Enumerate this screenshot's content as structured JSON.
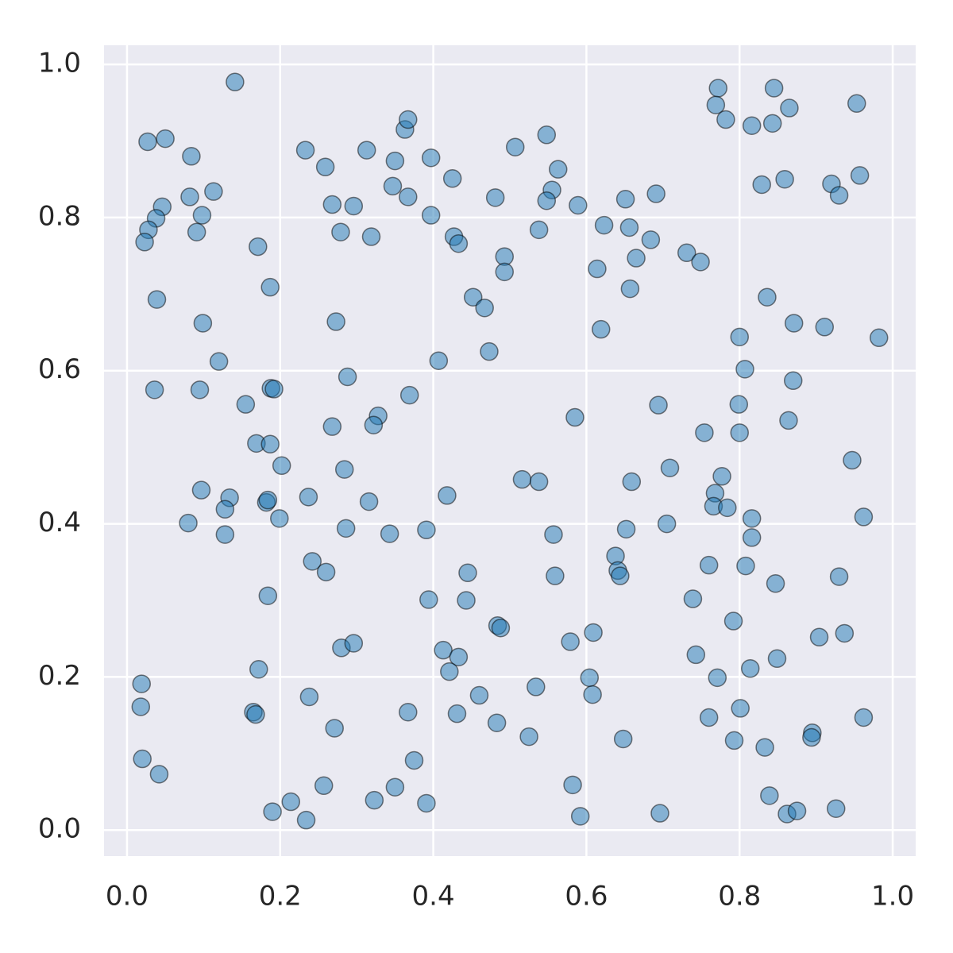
{
  "chart_data": {
    "type": "scatter",
    "color": "#1f77b4",
    "grid": true,
    "xlim": [
      -0.03,
      1.03
    ],
    "ylim": [
      -0.034,
      1.025
    ],
    "xticks": [
      {
        "value": 0,
        "label": "0.0"
      },
      0.2,
      0.4,
      0.6,
      0.8,
      {
        "value": 1,
        "label": "1.0"
      }
    ],
    "yticks": [
      {
        "value": 0,
        "label": "0.0"
      },
      0.2,
      0.4,
      0.6,
      0.8,
      {
        "value": 1,
        "label": "1.0"
      }
    ],
    "x": [
      0.141,
      0.027,
      0.05,
      0.084,
      0.082,
      0.113,
      0.046,
      0.038,
      0.028,
      0.023,
      0.098,
      0.091,
      0.039,
      0.099,
      0.12,
      0.036,
      0.095,
      0.171,
      0.187,
      0.233,
      0.259,
      0.268,
      0.296,
      0.279,
      0.273,
      0.288,
      0.313,
      0.319,
      0.35,
      0.363,
      0.367,
      0.347,
      0.367,
      0.397,
      0.397,
      0.425,
      0.427,
      0.433,
      0.452,
      0.467,
      0.493,
      0.493,
      0.481,
      0.507,
      0.548,
      0.563,
      0.555,
      0.548,
      0.589,
      0.538,
      0.473,
      0.407,
      0.369,
      0.155,
      0.188,
      0.192,
      0.169,
      0.187,
      0.202,
      0.268,
      0.328,
      0.322,
      0.284,
      0.097,
      0.134,
      0.128,
      0.08,
      0.128,
      0.182,
      0.184,
      0.199,
      0.237,
      0.286,
      0.316,
      0.343,
      0.391,
      0.418,
      0.242,
      0.26,
      0.184,
      0.172,
      0.165,
      0.168,
      0.238,
      0.271,
      0.28,
      0.296,
      0.394,
      0.445,
      0.443,
      0.413,
      0.433,
      0.421,
      0.431,
      0.367,
      0.46,
      0.483,
      0.484,
      0.488,
      0.516,
      0.538,
      0.557,
      0.559,
      0.585,
      0.019,
      0.018,
      0.02,
      0.042,
      0.19,
      0.214,
      0.234,
      0.257,
      0.323,
      0.35,
      0.375,
      0.391,
      0.525,
      0.534,
      0.579,
      0.609,
      0.604,
      0.608,
      0.582,
      0.592,
      0.648,
      0.696,
      0.614,
      0.623,
      0.651,
      0.656,
      0.665,
      0.657,
      0.684,
      0.691,
      0.619,
      0.731,
      0.749,
      0.694,
      0.709,
      0.659,
      0.652,
      0.705,
      0.638,
      0.641,
      0.644,
      0.739,
      0.76,
      0.743,
      0.76,
      0.754,
      0.772,
      0.769,
      0.782,
      0.816,
      0.845,
      0.843,
      0.865,
      0.829,
      0.859,
      0.953,
      0.957,
      0.92,
      0.93,
      0.836,
      0.871,
      0.911,
      0.982,
      0.8,
      0.807,
      0.87,
      0.799,
      0.8,
      0.864,
      0.947,
      0.962,
      0.777,
      0.768,
      0.766,
      0.784,
      0.816,
      0.816,
      0.808,
      0.847,
      0.93,
      0.792,
      0.904,
      0.937,
      0.849,
      0.814,
      0.771,
      0.801,
      0.793,
      0.833,
      0.895,
      0.894,
      0.962,
      0.839,
      0.862,
      0.875,
      0.926
    ],
    "values": [
      0.977,
      0.899,
      0.903,
      0.88,
      0.827,
      0.834,
      0.814,
      0.799,
      0.784,
      0.768,
      0.803,
      0.781,
      0.693,
      0.662,
      0.612,
      0.575,
      0.575,
      0.762,
      0.709,
      0.888,
      0.866,
      0.817,
      0.815,
      0.781,
      0.664,
      0.592,
      0.888,
      0.775,
      0.874,
      0.915,
      0.928,
      0.841,
      0.827,
      0.878,
      0.803,
      0.851,
      0.775,
      0.766,
      0.696,
      0.682,
      0.749,
      0.729,
      0.826,
      0.892,
      0.908,
      0.863,
      0.836,
      0.822,
      0.816,
      0.784,
      0.625,
      0.613,
      0.568,
      0.556,
      0.577,
      0.576,
      0.505,
      0.504,
      0.476,
      0.527,
      0.541,
      0.529,
      0.471,
      0.444,
      0.434,
      0.419,
      0.401,
      0.386,
      0.428,
      0.431,
      0.407,
      0.435,
      0.394,
      0.429,
      0.387,
      0.392,
      0.437,
      0.351,
      0.337,
      0.306,
      0.21,
      0.154,
      0.151,
      0.174,
      0.133,
      0.238,
      0.244,
      0.301,
      0.336,
      0.3,
      0.235,
      0.226,
      0.207,
      0.152,
      0.154,
      0.176,
      0.14,
      0.267,
      0.264,
      0.458,
      0.455,
      0.386,
      0.332,
      0.539,
      0.191,
      0.161,
      0.093,
      0.073,
      0.024,
      0.037,
      0.013,
      0.058,
      0.039,
      0.056,
      0.091,
      0.035,
      0.122,
      0.187,
      0.246,
      0.258,
      0.199,
      0.177,
      0.059,
      0.018,
      0.119,
      0.022,
      0.733,
      0.79,
      0.824,
      0.787,
      0.747,
      0.707,
      0.771,
      0.831,
      0.654,
      0.754,
      0.742,
      0.555,
      0.473,
      0.455,
      0.393,
      0.4,
      0.358,
      0.339,
      0.332,
      0.302,
      0.346,
      0.229,
      0.147,
      0.519,
      0.969,
      0.947,
      0.928,
      0.92,
      0.969,
      0.923,
      0.943,
      0.843,
      0.85,
      0.949,
      0.855,
      0.844,
      0.829,
      0.696,
      0.662,
      0.657,
      0.643,
      0.644,
      0.602,
      0.587,
      0.556,
      0.519,
      0.535,
      0.483,
      0.409,
      0.462,
      0.44,
      0.423,
      0.421,
      0.407,
      0.382,
      0.345,
      0.322,
      0.331,
      0.273,
      0.252,
      0.257,
      0.224,
      0.211,
      0.199,
      0.159,
      0.117,
      0.108,
      0.127,
      0.121,
      0.147,
      0.045,
      0.021,
      0.025,
      0.028
    ]
  }
}
